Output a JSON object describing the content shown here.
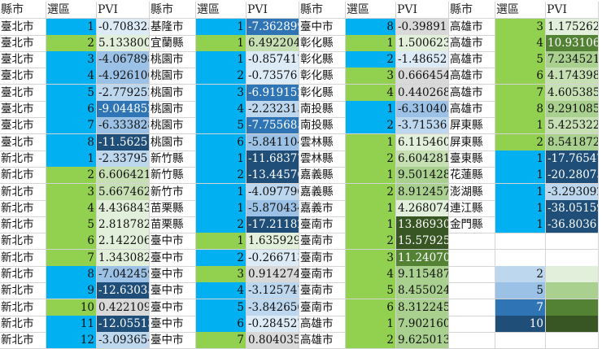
{
  "colors": {
    "blue": "#00b0f0",
    "green": "#92d050",
    "light_blue_1": "#ddebf7",
    "light_blue_2": "#bdd7ee",
    "mid_blue": "#9bc2e6",
    "steel_blue": "#2f75b5",
    "dark_blue": "#1f4e78",
    "gray": "#d9d9d9",
    "green_1": "#e2efda",
    "green_2": "#c6e0b4",
    "green_3": "#a9d08e",
    "green_4": "#548235",
    "green_5": "#375623"
  },
  "headers": [
    "縣市",
    "選區",
    "PVI",
    "縣市",
    "選區",
    "PVI",
    "縣市",
    "選區",
    "PVI",
    "縣市",
    "選區",
    "PVI"
  ],
  "groups": [
    {
      "rows": [
        [
          "臺北市",
          "1",
          "-0.708325"
        ],
        [
          "臺北市",
          "2",
          "5.1338004"
        ],
        [
          "臺北市",
          "3",
          "-4.067898"
        ],
        [
          "臺北市",
          "4",
          "-4.926106"
        ],
        [
          "臺北市",
          "5",
          "-2.779252"
        ],
        [
          "臺北市",
          "6",
          "-9.044852"
        ],
        [
          "臺北市",
          "7",
          "-6.333828"
        ],
        [
          "臺北市",
          "8",
          "-11.56251"
        ],
        [
          "新北市",
          "1",
          "-2.337951"
        ],
        [
          "新北市",
          "2",
          "6.6064212"
        ],
        [
          "新北市",
          "3",
          "5.6674621"
        ],
        [
          "新北市",
          "4",
          "4.4368439"
        ],
        [
          "新北市",
          "5",
          "2.8187827"
        ],
        [
          "新北市",
          "6",
          "2.1422069"
        ],
        [
          "新北市",
          "7",
          "1.3430822"
        ],
        [
          "新北市",
          "8",
          "-7.042459"
        ],
        [
          "新北市",
          "9",
          "-12.63035"
        ],
        [
          "新北市",
          "10",
          "0.422109"
        ],
        [
          "新北市",
          "11",
          "-12.05513"
        ],
        [
          "新北市",
          "12",
          "-3.093654"
        ]
      ],
      "dist_colors": [
        "blue",
        "green",
        "blue",
        "blue",
        "blue",
        "blue",
        "blue",
        "blue",
        "blue",
        "green",
        "green",
        "green",
        "green",
        "green",
        "green",
        "blue",
        "blue",
        "green",
        "blue",
        "blue"
      ],
      "pvi_colors": [
        "light_blue_1",
        "green_1",
        "mid_blue",
        "mid_blue",
        "light_blue_2",
        "steel_blue",
        "mid_blue",
        "dark_blue",
        "light_blue_2",
        "green_2",
        "green_2",
        "green_1",
        "green_1",
        "green_1",
        "green_1",
        "mid_blue",
        "dark_blue",
        "gray",
        "dark_blue",
        "light_blue_2"
      ]
    },
    {
      "rows": [
        [
          "基隆市",
          "1",
          "-7.362899"
        ],
        [
          "宜蘭縣",
          "1",
          "6.492204"
        ],
        [
          "桃園市",
          "1",
          "-0.857417"
        ],
        [
          "桃園市",
          "2",
          "-0.73576"
        ],
        [
          "桃園市",
          "3",
          "-6.919152"
        ],
        [
          "桃園市",
          "4",
          "-2.232315"
        ],
        [
          "桃園市",
          "5",
          "-7.755685"
        ],
        [
          "桃園市",
          "6",
          "-5.841104"
        ],
        [
          "新竹縣",
          "1",
          "-11.68377"
        ],
        [
          "新竹縣",
          "2",
          "-13.44576"
        ],
        [
          "新竹市",
          "1",
          "-4.097796"
        ],
        [
          "苗栗縣",
          "1",
          "-5.870434"
        ],
        [
          "苗栗縣",
          "2",
          "-17.21182"
        ],
        [
          "臺中市",
          "1",
          "1.6359293"
        ],
        [
          "臺中市",
          "2",
          "-0.266713"
        ],
        [
          "臺中市",
          "3",
          "0.9142746"
        ],
        [
          "臺中市",
          "4",
          "-3.125747"
        ],
        [
          "臺中市",
          "5",
          "-3.842656"
        ],
        [
          "臺中市",
          "6",
          "-0.284527"
        ],
        [
          "臺中市",
          "7",
          "0.8040359"
        ]
      ],
      "dist_colors": [
        "blue",
        "green",
        "blue",
        "blue",
        "blue",
        "blue",
        "blue",
        "blue",
        "blue",
        "blue",
        "blue",
        "blue",
        "blue",
        "green",
        "blue",
        "green",
        "blue",
        "blue",
        "blue",
        "green"
      ],
      "pvi_colors": [
        "steel_blue",
        "green_2",
        "light_blue_1",
        "light_blue_1",
        "steel_blue",
        "light_blue_2",
        "steel_blue",
        "mid_blue",
        "dark_blue",
        "dark_blue",
        "light_blue_2",
        "mid_blue",
        "dark_blue",
        "green_1",
        "light_blue_1",
        "gray",
        "light_blue_2",
        "light_blue_2",
        "light_blue_1",
        "gray"
      ]
    },
    {
      "rows": [
        [
          "臺中市",
          "8",
          "-0.39891"
        ],
        [
          "彰化縣",
          "1",
          "1.5006234"
        ],
        [
          "彰化縣",
          "2",
          "-1.48652"
        ],
        [
          "彰化縣",
          "3",
          "0.6664547"
        ],
        [
          "彰化縣",
          "4",
          "0.4402685"
        ],
        [
          "南投縣",
          "1",
          "-6.310405"
        ],
        [
          "南投縣",
          "2",
          "-3.715361"
        ],
        [
          "雲林縣",
          "1",
          "6.1154609"
        ],
        [
          "雲林縣",
          "2",
          "6.604281"
        ],
        [
          "嘉義縣",
          "1",
          "9.5014289"
        ],
        [
          "嘉義縣",
          "2",
          "8.9124579"
        ],
        [
          "嘉義市",
          "1",
          "4.2680748"
        ],
        [
          "臺南市",
          "1",
          "13.869306"
        ],
        [
          "臺南市",
          "2",
          "15.57925"
        ],
        [
          "臺南市",
          "3",
          "11.240709"
        ],
        [
          "臺南市",
          "4",
          "9.1154879"
        ],
        [
          "臺南市",
          "5",
          "8.4550246"
        ],
        [
          "臺南市",
          "6",
          "8.3122452"
        ],
        [
          "高雄市",
          "1",
          "7.9021609"
        ],
        [
          "高雄市",
          "2",
          "9.6250136"
        ]
      ],
      "dist_colors": [
        "blue",
        "green",
        "blue",
        "green",
        "green",
        "blue",
        "blue",
        "green",
        "green",
        "green",
        "green",
        "green",
        "green",
        "green",
        "green",
        "green",
        "green",
        "green",
        "green",
        "green"
      ],
      "pvi_colors": [
        "gray",
        "green_1",
        "light_blue_1",
        "gray",
        "gray",
        "mid_blue",
        "light_blue_2",
        "green_1",
        "green_2",
        "green_3",
        "green_3",
        "green_1",
        "green_5",
        "green_5",
        "green_4",
        "green_3",
        "green_3",
        "green_3",
        "green_3",
        "green_3"
      ]
    },
    {
      "rows": [
        [
          "高雄市",
          "3",
          "1.1752627"
        ],
        [
          "高雄市",
          "4",
          "10.931067"
        ],
        [
          "高雄市",
          "5",
          "7.2345219"
        ],
        [
          "高雄市",
          "6",
          "4.1743987"
        ],
        [
          "高雄市",
          "7",
          "4.6053859"
        ],
        [
          "高雄市",
          "8",
          "9.291085"
        ],
        [
          "屏東縣",
          "1",
          "5.4253223"
        ],
        [
          "屏東縣",
          "2",
          "8.5418724"
        ],
        [
          "臺東縣",
          "1",
          "-17.76547"
        ],
        [
          "花蓮縣",
          "1",
          "-20.28075"
        ],
        [
          "澎湖縣",
          "1",
          "-3.293092"
        ],
        [
          "連江縣",
          "1",
          "-38.05159"
        ],
        [
          "金門縣",
          "1",
          "-36.80361"
        ],
        [
          "",
          "",
          ""
        ],
        [
          "",
          "",
          ""
        ],
        [
          "",
          "",
          ""
        ],
        [
          "",
          "",
          ""
        ],
        [
          "",
          "",
          ""
        ],
        [
          "",
          "",
          ""
        ],
        [
          "",
          "",
          ""
        ]
      ],
      "dist_colors": [
        "green",
        "green",
        "green",
        "green",
        "green",
        "green",
        "green",
        "green",
        "blue",
        "blue",
        "blue",
        "blue",
        "blue",
        "",
        "",
        "",
        "",
        "",
        "",
        ""
      ],
      "pvi_colors": [
        "green_1",
        "green_4",
        "green_3",
        "green_2",
        "green_2",
        "green_3",
        "green_2",
        "green_3",
        "dark_blue",
        "dark_blue",
        "light_blue_2",
        "dark_blue",
        "dark_blue",
        "",
        "",
        "",
        "",
        "",
        "",
        ""
      ]
    }
  ],
  "legend": [
    {
      "value": "2",
      "blue": "light_blue_2",
      "green": "green_1"
    },
    {
      "value": "5",
      "blue": "mid_blue",
      "green": "green_3"
    },
    {
      "value": "7",
      "blue": "steel_blue",
      "green": "green_4"
    },
    {
      "value": "10",
      "blue": "dark_blue",
      "green": "green_5"
    }
  ]
}
